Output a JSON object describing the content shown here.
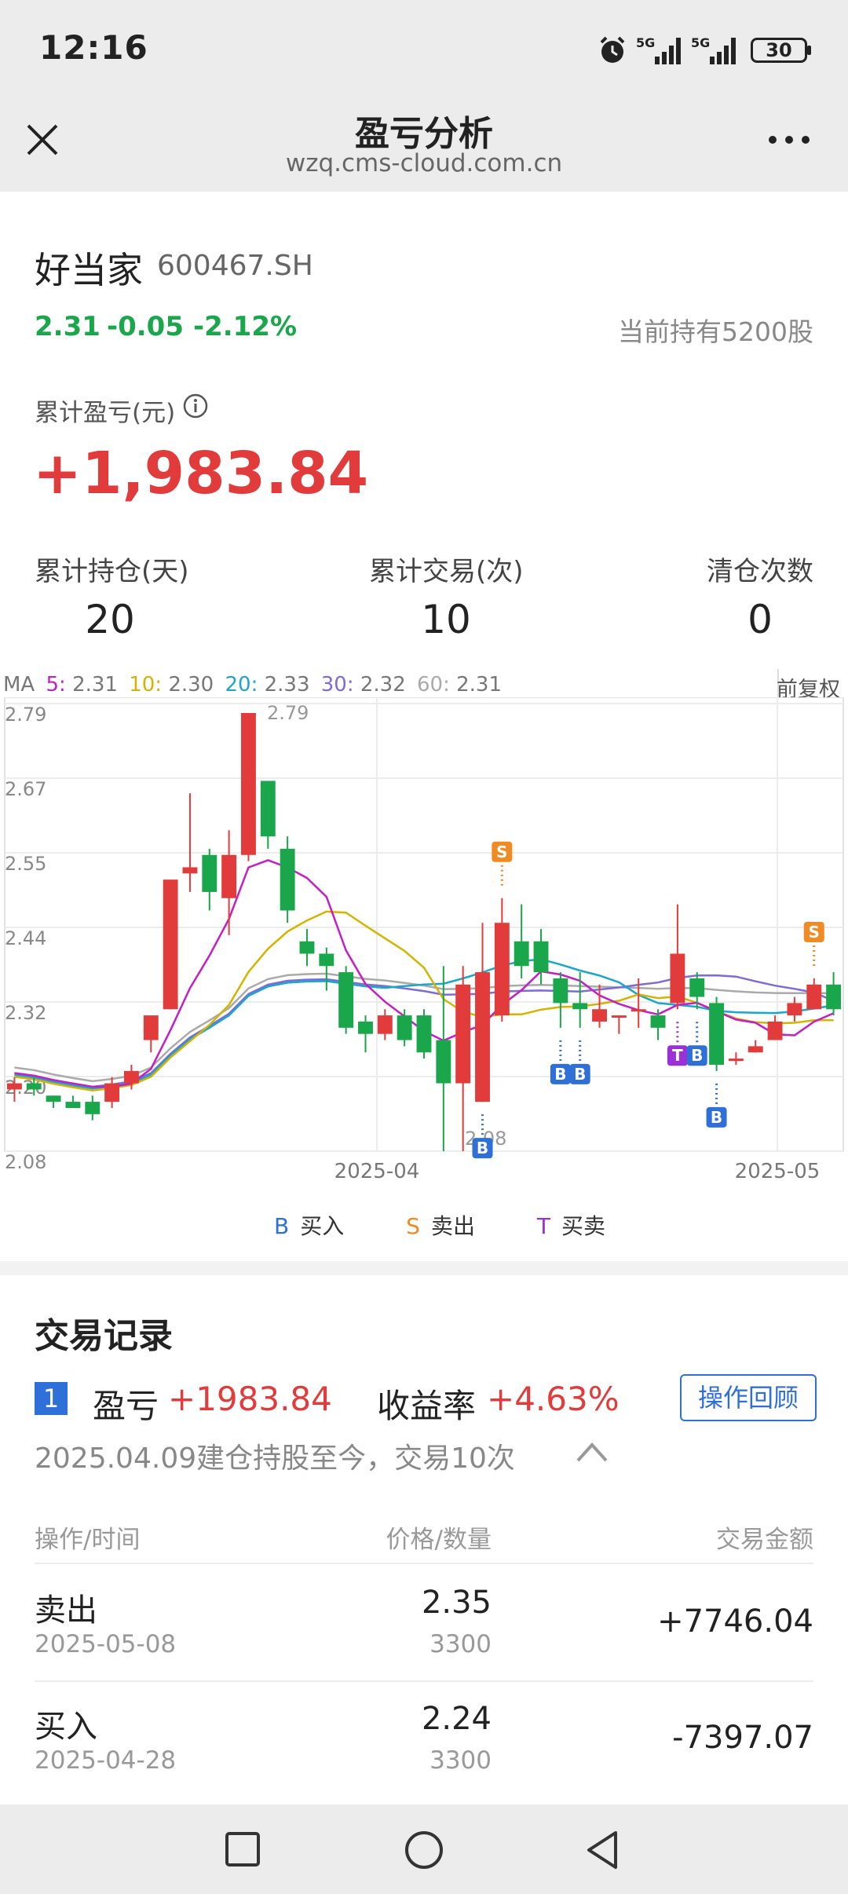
{
  "status_bar": {
    "time": "12:16",
    "battery": "30",
    "signal1": "5G",
    "signal2": "5G"
  },
  "nav": {
    "title": "盈亏分析",
    "url": "wzq.cms-cloud.com.cn"
  },
  "stock": {
    "name": "好当家",
    "code": "600467.SH",
    "price": "2.31",
    "change": "-0.05",
    "change_pct": "-2.12%",
    "holding": "当前持有5200股"
  },
  "pnl": {
    "label": "累计盈亏(元)",
    "value": "+1,983.84"
  },
  "stats": [
    {
      "label": "累计持仓(天)",
      "value": "20"
    },
    {
      "label": "累计交易(次)",
      "value": "10"
    },
    {
      "label": "清仓次数",
      "value": "0"
    }
  ],
  "ma": {
    "prefix": "MA",
    "items": [
      {
        "key": "5:",
        "value": "2.31",
        "color": "#c41fc4"
      },
      {
        "key": "10:",
        "value": "2.30",
        "color": "#d4b400"
      },
      {
        "key": "20:",
        "value": "2.33",
        "color": "#1ba7c9"
      },
      {
        "key": "30:",
        "value": "2.32",
        "color": "#7d6bd6"
      },
      {
        "key": "60:",
        "value": "2.31",
        "color": "#aaaaaa"
      }
    ],
    "adjust": "前复权"
  },
  "legend": [
    {
      "key": "B",
      "label": "买入",
      "color": "#2e6fd8"
    },
    {
      "key": "S",
      "label": "卖出",
      "color": "#f08a24"
    },
    {
      "key": "T",
      "label": "买卖",
      "color": "#9b30d8"
    }
  ],
  "chart_data": {
    "type": "candlestick",
    "y_ticks": [
      "2.79",
      "2.67",
      "2.55",
      "2.44",
      "2.32",
      "2.20",
      "2.08"
    ],
    "ylim": [
      2.08,
      2.79
    ],
    "x_ticks": [
      "2025-04",
      "2025-05"
    ],
    "high_label": "2.79",
    "low_label": "2.08",
    "candles": [
      [
        2.18,
        2.19,
        2.16,
        2.2
      ],
      [
        2.19,
        2.18,
        2.17,
        2.2
      ],
      [
        2.17,
        2.16,
        2.15,
        2.17
      ],
      [
        2.16,
        2.15,
        2.15,
        2.17
      ],
      [
        2.16,
        2.14,
        2.13,
        2.17
      ],
      [
        2.16,
        2.19,
        2.15,
        2.2
      ],
      [
        2.19,
        2.21,
        2.18,
        2.22
      ],
      [
        2.26,
        2.3,
        2.24,
        2.3
      ],
      [
        2.31,
        2.52,
        2.31,
        2.52
      ],
      [
        2.53,
        2.54,
        2.5,
        2.66
      ],
      [
        2.56,
        2.5,
        2.47,
        2.57
      ],
      [
        2.49,
        2.56,
        2.43,
        2.6
      ],
      [
        2.56,
        2.79,
        2.55,
        2.79
      ],
      [
        2.68,
        2.59,
        2.57,
        2.68
      ],
      [
        2.57,
        2.47,
        2.45,
        2.59
      ],
      [
        2.42,
        2.4,
        2.38,
        2.44
      ],
      [
        2.4,
        2.38,
        2.34,
        2.41
      ],
      [
        2.37,
        2.28,
        2.27,
        2.38
      ],
      [
        2.29,
        2.27,
        2.24,
        2.3
      ],
      [
        2.27,
        2.3,
        2.26,
        2.31
      ],
      [
        2.3,
        2.26,
        2.25,
        2.31
      ],
      [
        2.3,
        2.24,
        2.23,
        2.31
      ],
      [
        2.26,
        2.19,
        2.08,
        2.38
      ],
      [
        2.19,
        2.35,
        2.08,
        2.38
      ],
      [
        2.16,
        2.37,
        2.16,
        2.45
      ],
      [
        2.3,
        2.45,
        2.29,
        2.49
      ],
      [
        2.42,
        2.38,
        2.36,
        2.48
      ],
      [
        2.42,
        2.37,
        2.35,
        2.44
      ],
      [
        2.36,
        2.32,
        2.28,
        2.37
      ],
      [
        2.32,
        2.31,
        2.28,
        2.37
      ],
      [
        2.29,
        2.31,
        2.28,
        2.35
      ],
      [
        2.3,
        2.3,
        2.27,
        2.3
      ],
      [
        2.31,
        2.31,
        2.28,
        2.36
      ],
      [
        2.3,
        2.28,
        2.26,
        2.31
      ],
      [
        2.32,
        2.4,
        2.31,
        2.48
      ],
      [
        2.36,
        2.33,
        2.31,
        2.37
      ],
      [
        2.32,
        2.22,
        2.21,
        2.33
      ],
      [
        2.23,
        2.23,
        2.22,
        2.24
      ],
      [
        2.24,
        2.25,
        2.24,
        2.26
      ],
      [
        2.26,
        2.29,
        2.26,
        2.3
      ],
      [
        2.3,
        2.32,
        2.29,
        2.33
      ],
      [
        2.31,
        2.35,
        2.31,
        2.36
      ],
      [
        2.35,
        2.31,
        2.3,
        2.37
      ]
    ],
    "trade_marks": [
      {
        "type": "S",
        "index": 25
      },
      {
        "type": "B",
        "index": 28
      },
      {
        "type": "B",
        "index": 29
      },
      {
        "type": "B",
        "index": 24
      },
      {
        "type": "T",
        "index": 34
      },
      {
        "type": "B",
        "index": 35
      },
      {
        "type": "B",
        "index": 36
      },
      {
        "type": "S",
        "index": 41
      }
    ]
  },
  "trades": {
    "title": "交易记录",
    "index": "1",
    "pnl_label": "盈亏",
    "pnl_value": "+1983.84",
    "rate_label": "收益率",
    "rate_value": "+4.63%",
    "review_button": "操作回顾",
    "summary": "2025.04.09建仓持股至今，交易10次",
    "headers": [
      "操作/时间",
      "价格/数量",
      "交易金额"
    ],
    "rows": [
      {
        "action": "卖出",
        "date": "2025-05-08",
        "price": "2.35",
        "qty": "3300",
        "amount": "+7746.04"
      },
      {
        "action": "买入",
        "date": "2025-04-28",
        "price": "2.24",
        "qty": "3300",
        "amount": "-7397.07"
      }
    ]
  },
  "colors": {
    "up": "#e23b3b",
    "down": "#1aa64a",
    "accent": "#2e6fd8"
  }
}
